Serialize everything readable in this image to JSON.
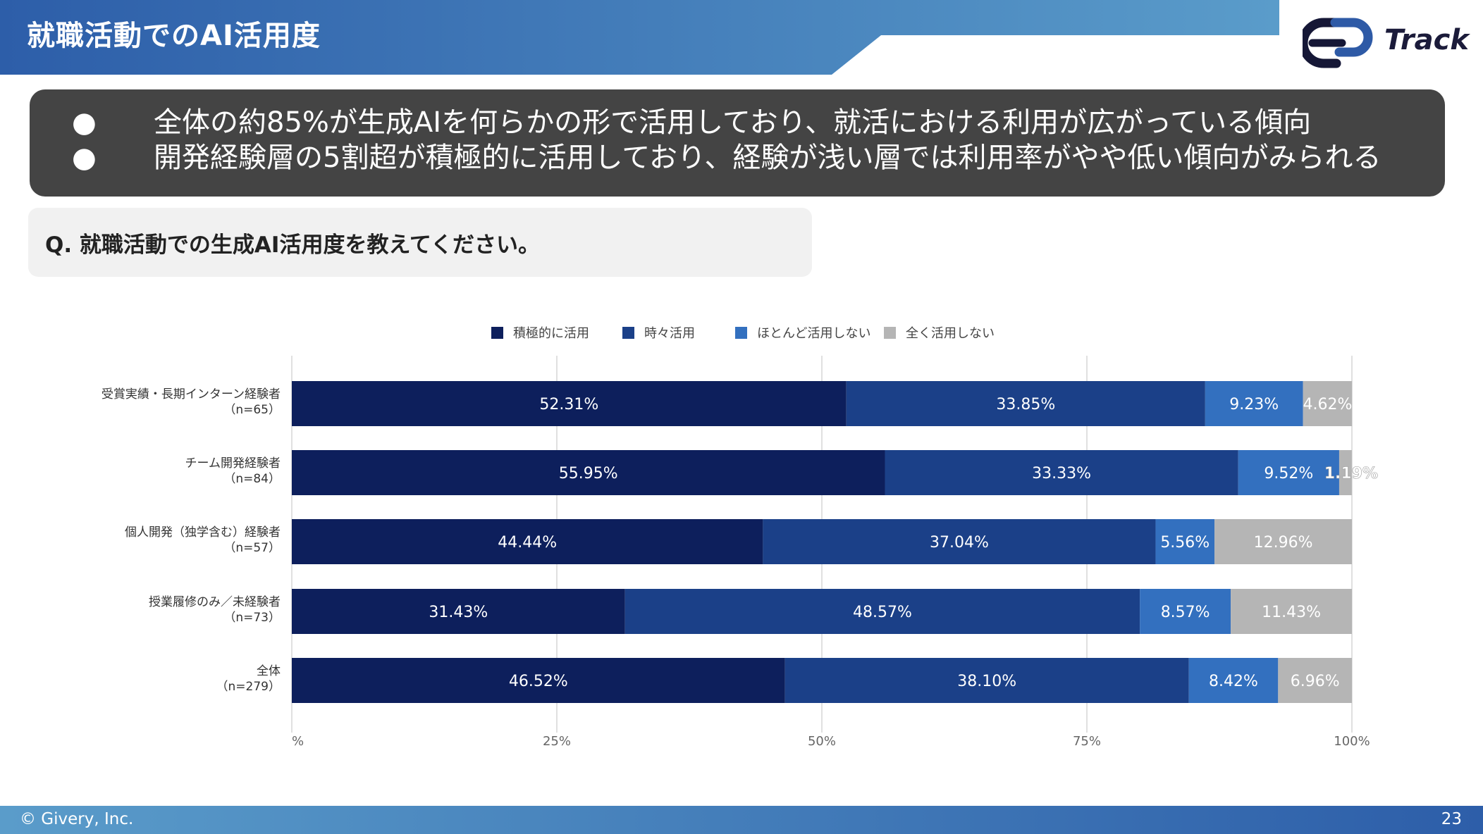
{
  "header": {
    "title": "就職活動でのAI活用度"
  },
  "logo": {
    "text": "Track",
    "colors": {
      "dark": "#151736",
      "blue": "#2e5aa6"
    }
  },
  "summary": {
    "bullet": "●",
    "lines": [
      "全体の約85%が生成AIを何らかの形で活用しており、就活における利用が広がっている傾向",
      "開発経験層の5割超が積極的に活用しており、経験が浅い層では利用率がやや低い傾向がみられる"
    ]
  },
  "question": {
    "text": "Q. 就職活動での生成AI活用度を教えてください。"
  },
  "chart_data": {
    "type": "bar",
    "orientation": "horizontal",
    "stacked": true,
    "percent_stacked": true,
    "legend_position": "top-center",
    "series": [
      {
        "name": "積極的に活用",
        "color": "#0d1f5c",
        "values": [
          52.31,
          55.95,
          44.44,
          31.43,
          46.52
        ],
        "labels": [
          "52.31%",
          "55.95%",
          "44.44%",
          "31.43%",
          "46.52%"
        ]
      },
      {
        "name": "時々活用",
        "color": "#1b4088",
        "values": [
          33.85,
          33.33,
          37.04,
          48.57,
          38.1
        ],
        "labels": [
          "33.85%",
          "33.33%",
          "37.04%",
          "48.57%",
          "38.10%"
        ]
      },
      {
        "name": "ほとんど活用しない",
        "color": "#3370bf",
        "values": [
          9.23,
          9.52,
          5.56,
          8.57,
          8.42
        ],
        "labels": [
          "9.23%",
          "9.52%",
          "5.56%",
          "8.57%",
          "8.42%"
        ]
      },
      {
        "name": "全く活用しない",
        "color": "#b5b5b5",
        "values": [
          4.62,
          1.19,
          12.96,
          11.43,
          6.96
        ],
        "labels": [
          "4.62%",
          "1.19%",
          "12.96%",
          "11.43%",
          "6.96%"
        ]
      }
    ],
    "categories": [
      {
        "name": "受賞実績・長期インターン経験者",
        "n": "（n=65）"
      },
      {
        "name": "チーム開発経験者",
        "n": "（n=84）"
      },
      {
        "name": "個人開発（独学含む）経験者",
        "n": "（n=57）"
      },
      {
        "name": "授業履修のみ／未経験者",
        "n": "（n=73）"
      },
      {
        "name": "全体",
        "n": "（n=279）"
      }
    ],
    "xlim": [
      0,
      100
    ],
    "xticks": [
      {
        "value": 0,
        "label": "%"
      },
      {
        "value": 25,
        "label": "25%"
      },
      {
        "value": 50,
        "label": "50%"
      },
      {
        "value": 75,
        "label": "75%"
      },
      {
        "value": 100,
        "label": "100%"
      }
    ],
    "grid": true
  },
  "footer": {
    "copyright": "© Givery, Inc.",
    "page": "23"
  },
  "colors": {
    "header_gradient_start": "#2c64ad",
    "header_gradient_end": "#5fa0cc",
    "summary_bg": "#444444",
    "question_bg": "#f1f1f1"
  }
}
